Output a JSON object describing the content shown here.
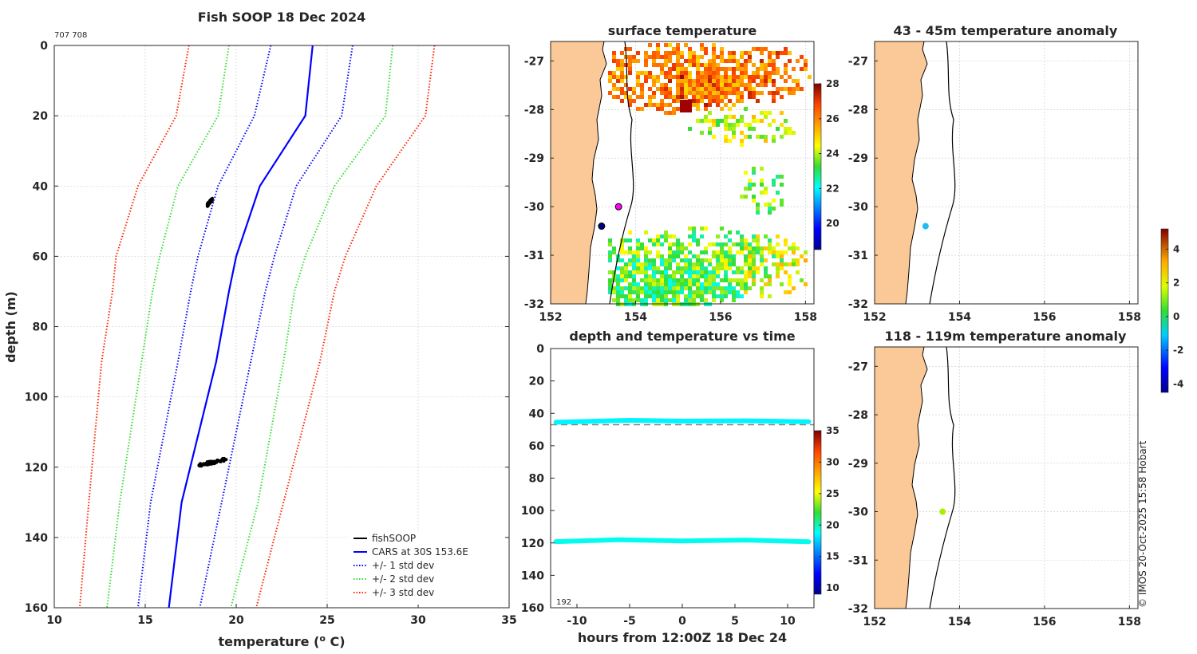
{
  "panels": {
    "profile": {
      "title": "Fish SOOP 18 Dec 2024",
      "id_text": "707 708",
      "xlabel_main": "temperature (",
      "xlabel_sup": "o",
      "xlabel_end": " C)",
      "ylabel": "depth (m)"
    },
    "sst": {
      "title": "surface temperature"
    },
    "timeseries": {
      "title": "depth and temperature vs time",
      "xlabel": "hours from 12:00Z 18 Dec 24",
      "corner_label": "192"
    },
    "anom1": {
      "title": "43 - 45m temperature anomaly"
    },
    "anom2": {
      "title": "118 - 119m temperature anomaly"
    }
  },
  "credit": "© IMOS 20-Oct-2025 15:58 Hobart",
  "legend": [
    {
      "label": "fishSOOP",
      "color": "#000000",
      "style": "solid"
    },
    {
      "label": "CARS at 30S 153.6E",
      "color": "#0000ff",
      "style": "solid"
    },
    {
      "label": "+/- 1 std dev",
      "color": "#0000ff",
      "style": "dotted"
    },
    {
      "label": "+/- 2 std dev",
      "color": "#33dd33",
      "style": "dotted"
    },
    {
      "label": "+/- 3 std dev",
      "color": "#ff2200",
      "style": "dotted"
    }
  ],
  "colors": {
    "land": "#fbc998",
    "accent_blue": "#0000ff",
    "green": "#33dd33",
    "red": "#ff2200"
  },
  "chart_data": [
    {
      "type": "line",
      "title": "Fish SOOP 18 Dec 2024",
      "xlabel": "temperature (o C)",
      "ylabel": "depth (m)",
      "xlim": [
        10,
        35
      ],
      "ylim": [
        0,
        160
      ],
      "y_reversed": true,
      "xticks": [
        10,
        15,
        20,
        25,
        30,
        35
      ],
      "yticks": [
        0,
        20,
        40,
        60,
        80,
        100,
        120,
        140,
        160
      ],
      "depths": [
        0,
        20,
        40,
        60,
        70,
        90,
        130,
        160
      ],
      "series": [
        {
          "name": "CARS at 30S 153.6E",
          "style": "solid",
          "color": "#0000ff",
          "values": [
            24.2,
            23.8,
            21.3,
            20.0,
            19.6,
            18.9,
            17.0,
            16.3
          ]
        },
        {
          "name": "+1 std dev",
          "style": "dotted",
          "color": "#0000ff",
          "values": [
            26.4,
            25.8,
            23.3,
            22.1,
            21.6,
            20.8,
            19.2,
            18.0
          ]
        },
        {
          "name": "-1 std dev",
          "style": "dotted",
          "color": "#0000ff",
          "values": [
            21.9,
            21.0,
            19.0,
            17.9,
            17.5,
            16.8,
            15.3,
            14.6
          ]
        },
        {
          "name": "+2 std dev",
          "style": "dotted",
          "color": "#33dd33",
          "values": [
            28.6,
            28.2,
            25.4,
            23.8,
            23.2,
            22.6,
            21.2,
            19.7
          ]
        },
        {
          "name": "-2 std dev",
          "style": "dotted",
          "color": "#33dd33",
          "values": [
            19.6,
            19.0,
            16.8,
            15.8,
            15.4,
            14.8,
            13.6,
            12.9
          ]
        },
        {
          "name": "+3 std dev",
          "style": "dotted",
          "color": "#ff2200",
          "values": [
            30.9,
            30.4,
            27.7,
            26.0,
            25.4,
            24.6,
            22.6,
            21.1
          ]
        },
        {
          "name": "-3 std dev",
          "style": "dotted",
          "color": "#ff2200",
          "values": [
            17.4,
            16.7,
            14.6,
            13.4,
            13.2,
            12.6,
            11.9,
            11.4
          ]
        }
      ],
      "fishsoop_clusters": [
        {
          "temperature": [
            18.4,
            18.7
          ],
          "depth": [
            43.5,
            45.5
          ]
        },
        {
          "temperature": [
            17.9,
            19.5
          ],
          "depth": [
            117.5,
            119.5
          ]
        }
      ]
    },
    {
      "type": "heatmap",
      "title": "surface temperature",
      "xlim": [
        152,
        158.2
      ],
      "ylim": [
        -32,
        -26.6
      ],
      "xticks": [
        152,
        154,
        156,
        158
      ],
      "yticks": [
        -27,
        -28,
        -29,
        -30,
        -31,
        -32
      ],
      "colorbar": {
        "range": [
          18.5,
          28
        ],
        "ticks": [
          20,
          22,
          24,
          26,
          28
        ]
      },
      "markers": [
        {
          "lon": 153.6,
          "lat": -30.0,
          "color": "#ff00ff"
        },
        {
          "lon": 153.2,
          "lat": -30.4,
          "color": "#000080"
        }
      ]
    },
    {
      "type": "scatter",
      "title": "depth and temperature vs time",
      "xlabel": "hours from 12:00Z 18 Dec 24",
      "xlim": [
        -12.5,
        12.5
      ],
      "ylim": [
        0,
        160
      ],
      "y_reversed": true,
      "xticks": [
        -10,
        -5,
        0,
        5,
        10
      ],
      "yticks": [
        0,
        20,
        40,
        60,
        80,
        100,
        120,
        140,
        160
      ],
      "reference_depth": 47,
      "colorbar": {
        "range": [
          9,
          35
        ],
        "ticks": [
          10,
          15,
          20,
          25,
          30,
          35
        ]
      },
      "series": [
        {
          "name": "shallow sensor",
          "temperature": 18.5,
          "hours": [
            -12,
            -8,
            -5,
            0,
            6,
            12
          ],
          "depth": [
            45.5,
            44.8,
            44.3,
            44.8,
            44.6,
            45.2
          ]
        },
        {
          "name": "deep sensor",
          "temperature": 19.0,
          "hours": [
            -12,
            -6,
            0,
            6,
            12
          ],
          "depth": [
            119.2,
            118.0,
            118.8,
            118.2,
            119.3
          ]
        }
      ]
    },
    {
      "type": "scatter",
      "title": "43 - 45m temperature anomaly",
      "xlim": [
        152,
        158.2
      ],
      "ylim": [
        -32,
        -26.6
      ],
      "xticks": [
        152,
        154,
        156,
        158
      ],
      "yticks": [
        -27,
        -28,
        -29,
        -30,
        -31,
        -32
      ],
      "points": [
        {
          "lon": 153.2,
          "lat": -30.4,
          "anomaly": -1.5
        }
      ]
    },
    {
      "type": "scatter",
      "title": "118 - 119m temperature anomaly",
      "xlim": [
        152,
        158.2
      ],
      "ylim": [
        -32,
        -26.6
      ],
      "xticks": [
        152,
        154,
        156,
        158
      ],
      "yticks": [
        -27,
        -28,
        -29,
        -30,
        -31,
        -32
      ],
      "points": [
        {
          "lon": 153.6,
          "lat": -30.0,
          "anomaly": 1.8
        }
      ],
      "colorbar": {
        "range": [
          -4.5,
          5.2
        ],
        "ticks": [
          -4,
          -2,
          0,
          2,
          4
        ]
      }
    }
  ]
}
